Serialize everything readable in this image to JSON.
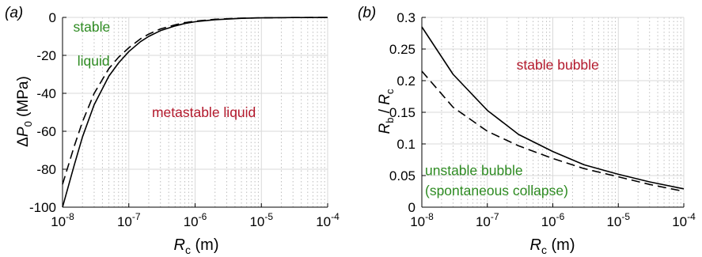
{
  "panels": [
    {
      "label": "(a)",
      "ylabel_parts": [
        "Δ",
        "P",
        "0",
        " (MPa)"
      ],
      "xlabel_parts": [
        "R",
        "c",
        " (m)"
      ]
    },
    {
      "label": "(b)",
      "ylabel_parts": [
        "R",
        "b",
        " / ",
        "R",
        "c"
      ],
      "xlabel_parts": [
        "R",
        "c",
        " (m)"
      ]
    }
  ],
  "colors": {
    "red_annotation": "#b2182b",
    "green_annotation": "#2e8b22",
    "major_grid": "#d9d9d9",
    "minor_grid": "#bdbdbd"
  },
  "chart_data": [
    {
      "type": "line",
      "x_scale": "log",
      "xlim": [
        1e-08,
        0.0001
      ],
      "ylim": [
        -100,
        0
      ],
      "x_ticks": [
        1e-08,
        1e-07,
        1e-06,
        1e-05,
        0.0001
      ],
      "x_tick_labels": [
        {
          "base": "10",
          "exp": "-8"
        },
        {
          "base": "10",
          "exp": "-7"
        },
        {
          "base": "10",
          "exp": "-6"
        },
        {
          "base": "10",
          "exp": "-5"
        },
        {
          "base": "10",
          "exp": "-4"
        }
      ],
      "y_ticks": [
        -100,
        -80,
        -60,
        -40,
        -20,
        0
      ],
      "y_tick_labels": [
        "-100",
        "-80",
        "-60",
        "-40",
        "-20",
        "0"
      ],
      "grid": true,
      "series": [
        {
          "style": "solid",
          "x": [
            1e-08,
            1.5e-08,
            2e-08,
            3e-08,
            5e-08,
            7e-08,
            1e-07,
            1.5e-07,
            2e-07,
            3e-07,
            5e-07,
            7e-07,
            1e-06,
            2e-06,
            5e-06,
            1e-05,
            3e-05,
            0.0001
          ],
          "y": [
            -100,
            -78,
            -63,
            -46,
            -31,
            -24,
            -18,
            -12.8,
            -10,
            -7,
            -4.5,
            -3.2,
            -2.3,
            -1.2,
            -0.5,
            -0.25,
            -0.1,
            -0.03
          ]
        },
        {
          "style": "dashed",
          "x": [
            1e-08,
            1.5e-08,
            2e-08,
            3e-08,
            5e-08,
            7e-08,
            1e-07,
            1.5e-07,
            2e-07,
            3e-07,
            5e-07,
            7e-07,
            1e-06,
            2e-06,
            5e-06,
            1e-05,
            3e-05,
            0.0001
          ],
          "y": [
            -88,
            -68,
            -55,
            -40,
            -27,
            -21,
            -16,
            -11.3,
            -8.8,
            -6.1,
            -3.9,
            -2.8,
            -2,
            -1,
            -0.42,
            -0.2,
            -0.08,
            -0.02
          ]
        }
      ],
      "annotations": [
        {
          "text": "stable",
          "color": "green",
          "x": 1.3e-08,
          "y": -5
        },
        {
          "text": "liquid",
          "color": "green",
          "x": 1.5e-08,
          "y": -23
        },
        {
          "text": "metastable liquid",
          "color": "red",
          "x": 2e-07,
          "y": -50
        }
      ]
    },
    {
      "type": "line",
      "x_scale": "log",
      "xlim": [
        1e-08,
        0.0001
      ],
      "ylim": [
        0,
        0.3
      ],
      "x_ticks": [
        1e-08,
        1e-07,
        1e-06,
        1e-05,
        0.0001
      ],
      "x_tick_labels": [
        {
          "base": "10",
          "exp": "-8"
        },
        {
          "base": "10",
          "exp": "-7"
        },
        {
          "base": "10",
          "exp": "-6"
        },
        {
          "base": "10",
          "exp": "-5"
        },
        {
          "base": "10",
          "exp": "-4"
        }
      ],
      "y_ticks": [
        0,
        0.05,
        0.1,
        0.15,
        0.2,
        0.25,
        0.3
      ],
      "y_tick_labels": [
        "0",
        "0.05",
        "0.1",
        "0.15",
        "0.2",
        "0.25",
        "0.3"
      ],
      "grid": true,
      "series": [
        {
          "style": "solid",
          "x": [
            1e-08,
            3e-08,
            1e-07,
            3e-07,
            1e-06,
            3e-06,
            1e-05,
            3e-05,
            0.0001
          ],
          "y": [
            0.285,
            0.21,
            0.153,
            0.115,
            0.088,
            0.067,
            0.052,
            0.04,
            0.029
          ]
        },
        {
          "style": "dashed",
          "x": [
            1e-08,
            3e-08,
            1e-07,
            3e-07,
            1e-06,
            3e-06,
            1e-05,
            3e-05,
            0.0001
          ],
          "y": [
            0.215,
            0.158,
            0.12,
            0.097,
            0.077,
            0.061,
            0.048,
            0.036,
            0.025
          ]
        }
      ],
      "annotations": [
        {
          "text": "stable bubble",
          "color": "red",
          "x": 2.5e-07,
          "y": 0.225
        },
        {
          "text": "unstable bubble",
          "color": "green",
          "x": 1e-08,
          "y": 0.058
        },
        {
          "text": "(spontaneous collapse)",
          "color": "green",
          "x": 1e-08,
          "y": 0.026
        }
      ]
    }
  ]
}
